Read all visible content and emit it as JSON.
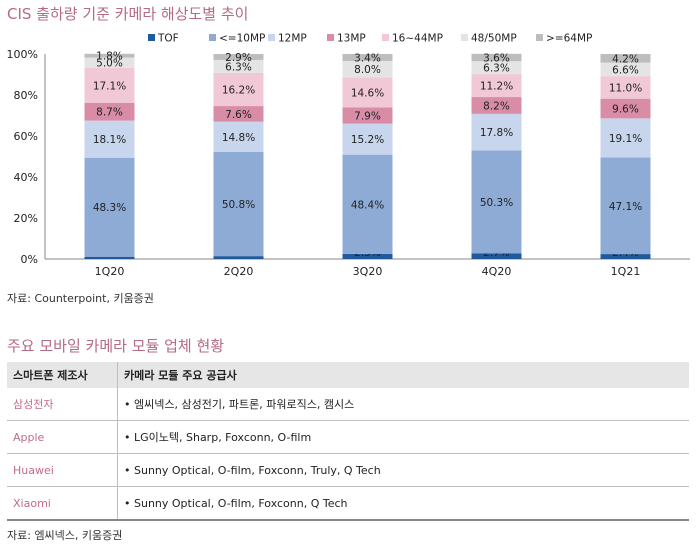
{
  "chart_title": "CIS 출하량 기준 카메라 해상도별 추이",
  "chart_source": "자료: Counterpoint, 키움증권",
  "chart_data": {
    "type": "bar",
    "stacked": true,
    "title": "CIS 출하량 기준 카메라 해상도별 추이",
    "categories": [
      "1Q20",
      "2Q20",
      "3Q20",
      "4Q20",
      "1Q21"
    ],
    "ylim": [
      0,
      100
    ],
    "yticks": [
      "0%",
      "20%",
      "40%",
      "60%",
      "80%",
      "100%"
    ],
    "legend_position": "top",
    "series": [
      {
        "name": "TOF",
        "color": "#215a9a",
        "values": [
          1.1,
          1.4,
          2.5,
          2.7,
          2.4
        ]
      },
      {
        "name": "<=10MP",
        "color": "#8eabd6",
        "values": [
          48.3,
          50.8,
          48.4,
          50.3,
          47.1
        ]
      },
      {
        "name": "12MP",
        "color": "#c7d6ec",
        "values": [
          18.1,
          14.8,
          15.2,
          17.8,
          19.1
        ]
      },
      {
        "name": "13MP",
        "color": "#d98ca6",
        "values": [
          8.7,
          7.6,
          7.9,
          8.2,
          9.6
        ]
      },
      {
        "name": "16~44MP",
        "color": "#f1c9d6",
        "values": [
          17.1,
          16.2,
          14.6,
          11.2,
          11.0
        ]
      },
      {
        "name": "48/50MP",
        "color": "#e4e4e4",
        "values": [
          5.0,
          6.3,
          8.0,
          6.3,
          6.6
        ]
      },
      {
        "name": ">=64MP",
        "color": "#bdbdbd",
        "values": [
          1.8,
          2.9,
          3.4,
          3.6,
          4.2
        ]
      }
    ],
    "value_labels": [
      [
        "1.1%",
        "1.4%",
        "2.5%",
        "2.7%",
        "2.4%"
      ],
      [
        "48.3%",
        "50.8%",
        "48.4%",
        "50.3%",
        "47.1%"
      ],
      [
        "18.1%",
        "14.8%",
        "15.2%",
        "17.8%",
        "19.1%"
      ],
      [
        "8.7%",
        "7.6%",
        "7.9%",
        "8.2%",
        "9.6%"
      ],
      [
        "17.1%",
        "16.2%",
        "14.6%",
        "11.2%",
        "11.0%"
      ],
      [
        "5.0%",
        "6.3%",
        "8.0%",
        "6.3%",
        "6.6%"
      ],
      [
        "1.8%",
        "2.9%",
        "3.4%",
        "3.6%",
        "4.2%"
      ]
    ]
  },
  "table": {
    "title": "주요 모바일 카메라 모듈 업체 현황",
    "headers": [
      "스마트폰 제조사",
      "카메라 모듈 주요 공급사"
    ],
    "rows": [
      {
        "maker": "삼성전자",
        "suppliers": "• 엠씨넥스, 삼성전기, 파트론, 파워로직스, 캠시스"
      },
      {
        "maker": "Apple",
        "suppliers": "• LG이노텍, Sharp, Foxconn, O-film"
      },
      {
        "maker": "Huawei",
        "suppliers": "• Sunny Optical, O-film, Foxconn, Truly, Q Tech"
      },
      {
        "maker": "Xiaomi",
        "suppliers": "• Sunny Optical, O-film, Foxconn, Q Tech"
      }
    ],
    "source": "자료: 엠씨넥스, 키움증권"
  }
}
